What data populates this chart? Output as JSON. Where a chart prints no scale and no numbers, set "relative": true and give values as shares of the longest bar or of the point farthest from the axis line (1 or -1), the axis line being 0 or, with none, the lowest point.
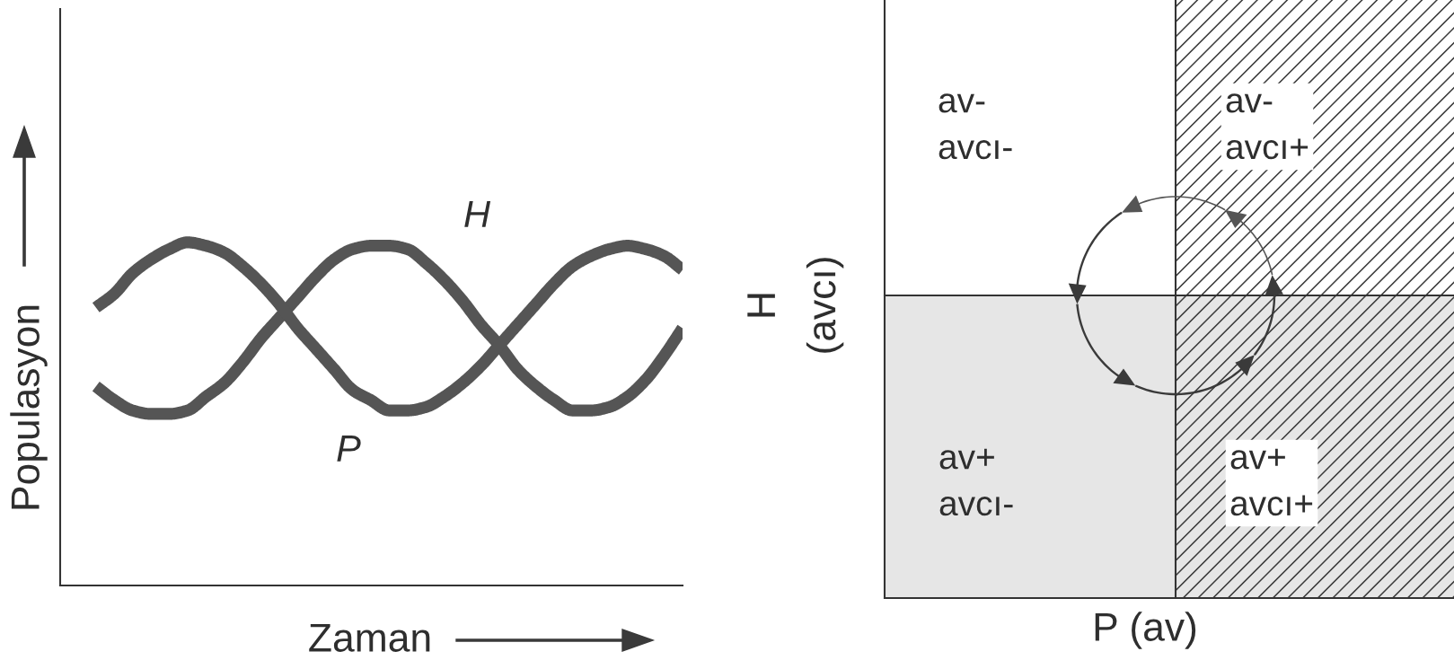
{
  "chart_data": [
    {
      "type": "line",
      "relative": true,
      "xlabel": "Zaman",
      "ylabel": "Populasyon",
      "categories": [
        null,
        null,
        null,
        null,
        null,
        null,
        null,
        null,
        null,
        null,
        null,
        null,
        null,
        null,
        null,
        null,
        null,
        null,
        null,
        null,
        null,
        null,
        null,
        null,
        null,
        null,
        null,
        null,
        null,
        null,
        null,
        null,
        null
      ],
      "series": [
        {
          "name": "H",
          "color": "#555555",
          "values": [
            0.58,
            0.54,
            0.51,
            0.5,
            0.5,
            0.51,
            0.55,
            0.59,
            0.65,
            0.72,
            0.78,
            0.84,
            0.9,
            0.95,
            0.98,
            0.99,
            0.99,
            0.98,
            0.94,
            0.89,
            0.83,
            0.76,
            0.7,
            0.63,
            0.58,
            0.54,
            0.51,
            0.51,
            0.52,
            0.55,
            0.6,
            0.67,
            0.75
          ]
        },
        {
          "name": "P",
          "color": "#555555",
          "values": [
            0.81,
            0.85,
            0.91,
            0.95,
            0.98,
            1.0,
            0.99,
            0.97,
            0.93,
            0.88,
            0.82,
            0.75,
            0.69,
            0.63,
            0.57,
            0.54,
            0.51,
            0.51,
            0.52,
            0.55,
            0.59,
            0.64,
            0.7,
            0.76,
            0.82,
            0.88,
            0.93,
            0.96,
            0.98,
            0.99,
            0.98,
            0.96,
            0.92
          ]
        }
      ]
    },
    {
      "type": "other",
      "xlabel": "P (av)",
      "ylabel": "H\n(avcı)",
      "annotations": [
        "av-\navcı-",
        "av-\navcı+",
        "av+\navcı-",
        "av+\navcı+"
      ]
    }
  ]
}
